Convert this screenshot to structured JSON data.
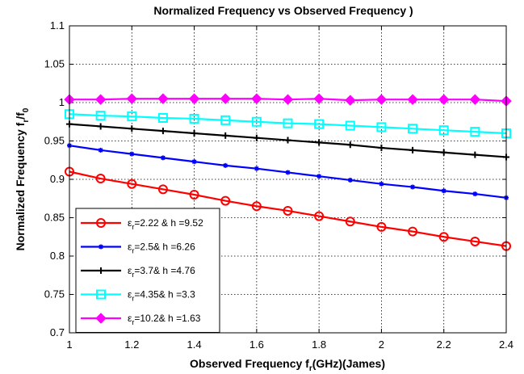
{
  "chart_data": {
    "type": "line",
    "title": "Normalized Frequency vs Observed Frequency )",
    "xlabel": {
      "main": "Observed Frequency f",
      "sub": "r",
      "tail": "(GHz)(James)"
    },
    "ylabel": {
      "main": "Normalized Frequency f",
      "sub1": "r",
      "mid": "/f",
      "sub2": "0"
    },
    "xlim": [
      1,
      2.4
    ],
    "ylim": [
      0.7,
      1.1
    ],
    "xticks": [
      1,
      1.2,
      1.4,
      1.6,
      1.8,
      2,
      2.2,
      2.4
    ],
    "xtick_labels": [
      "1",
      "1.2",
      "1.4",
      "1.6",
      "1.8",
      "2",
      "2.2",
      "2.4"
    ],
    "yticks": [
      0.7,
      0.75,
      0.8,
      0.85,
      0.9,
      0.95,
      1,
      1.05,
      1.1
    ],
    "ytick_labels": [
      "0.7",
      "0.75",
      "0.8",
      "0.85",
      "0.9",
      "0.95",
      "1",
      "1.05",
      "1.1"
    ],
    "grid": true,
    "legend_position": "bottom-left",
    "x": [
      1.0,
      1.1,
      1.2,
      1.3,
      1.4,
      1.5,
      1.6,
      1.7,
      1.8,
      1.9,
      2.0,
      2.1,
      2.2,
      2.3,
      2.4
    ],
    "series": [
      {
        "legend": {
          "sym": "ε",
          "sub": "r",
          "rest": "=2.22 & h =9.52"
        },
        "color": "#ff0000",
        "marker": "circle",
        "values": [
          0.91,
          0.901,
          0.894,
          0.887,
          0.88,
          0.872,
          0.865,
          0.859,
          0.852,
          0.845,
          0.838,
          0.832,
          0.825,
          0.819,
          0.813
        ]
      },
      {
        "legend": {
          "sym": "ε",
          "sub": "r",
          "rest": "=2.5& h =6.26"
        },
        "color": "#0000ff",
        "marker": "star",
        "values": [
          0.944,
          0.938,
          0.933,
          0.928,
          0.923,
          0.918,
          0.914,
          0.909,
          0.904,
          0.899,
          0.894,
          0.89,
          0.885,
          0.881,
          0.876
        ]
      },
      {
        "legend": {
          "sym": "ε",
          "sub": "r",
          "rest": "=3.7& h =4.76"
        },
        "color": "#000000",
        "marker": "plus",
        "values": [
          0.972,
          0.969,
          0.966,
          0.963,
          0.96,
          0.957,
          0.954,
          0.951,
          0.948,
          0.945,
          0.941,
          0.938,
          0.935,
          0.932,
          0.929
        ]
      },
      {
        "legend": {
          "sym": "ε",
          "sub": "r",
          "rest": "=4.35& h =3.3"
        },
        "color": "#00ffff",
        "marker": "square",
        "values": [
          0.985,
          0.983,
          0.982,
          0.98,
          0.979,
          0.977,
          0.975,
          0.973,
          0.972,
          0.97,
          0.968,
          0.966,
          0.964,
          0.962,
          0.96
        ]
      },
      {
        "legend": {
          "sym": "ε",
          "sub": "r",
          "rest": "=10.2& h =1.63"
        },
        "color": "#ff00ff",
        "marker": "diamond",
        "values": [
          1.004,
          1.004,
          1.005,
          1.005,
          1.005,
          1.005,
          1.005,
          1.004,
          1.005,
          1.003,
          1.004,
          1.004,
          1.004,
          1.004,
          1.002
        ]
      }
    ]
  }
}
